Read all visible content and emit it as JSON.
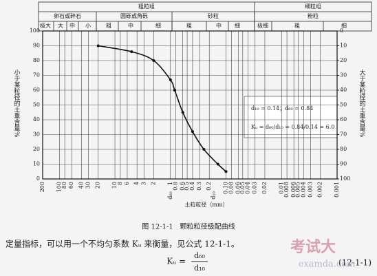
{
  "chart_data": {
    "type": "line",
    "ylabel": "小于某粒径的土重含量%",
    "y2label": "大于某粒径的土重含量%",
    "xlabel": "土粒粒径（mm）",
    "header": {
      "row1": [
        "粗粒组",
        "细粒组"
      ],
      "row2": [
        "卵石或碎石",
        "圆砾或角砾",
        "砂粒",
        "粉粒"
      ],
      "row3": [
        "极大",
        "大",
        "中",
        "小",
        "粗",
        "中",
        "细",
        "粗",
        "中",
        "细",
        "极细",
        "粗",
        "细"
      ]
    },
    "log_x": true,
    "xlim": [
      200,
      0.001
    ],
    "xticks": [
      200,
      100,
      80,
      60,
      40,
      30,
      20,
      10,
      8,
      6,
      4,
      3,
      2,
      1,
      0.8,
      0.6,
      0.5,
      0.4,
      0.3,
      0.2,
      {
        "value": 0.1,
        "label": "0.10"
      },
      0.08,
      0.06,
      0.05,
      0.04,
      0.03,
      0.02,
      0.01,
      0.008,
      0.006,
      0.005,
      0.004,
      0.003,
      0.002,
      0.001
    ],
    "ylim": [
      0,
      100
    ],
    "yticks": [
      0,
      10,
      20,
      30,
      40,
      50,
      60,
      70,
      80,
      90,
      100
    ],
    "y2lim": [
      100,
      0
    ],
    "y2ticks": [
      0,
      10,
      20,
      30,
      40,
      50,
      60,
      70,
      80,
      90,
      100
    ],
    "x": [
      20,
      5,
      2,
      1,
      0.84,
      0.6,
      0.4,
      0.25,
      0.14,
      0.1
    ],
    "values": [
      90,
      86,
      80,
      67,
      60,
      45,
      32,
      20,
      10,
      5
    ],
    "color": "#111",
    "markers": [
      {
        "label": "d₆₀",
        "x": 0.84
      },
      {
        "label": "d₁₀",
        "x": 0.14
      }
    ],
    "annotations": [
      "d₁₀ = 0.14；d₆₀ = 0.84",
      "Kᵤ = d₆₀/d₁₀ = 0.84/0.14 = 6.0"
    ],
    "grid": true
  },
  "caption": "图 12-1-1　颗粒粒径级配曲线",
  "body_text": "定量指标，可以用一个不均匀系数 Kᵤ 来衡量，见公式 12-1-1。",
  "formula": {
    "lhs": "Kᵤ =",
    "numerator": "d₆₀",
    "denominator": "d₁₀",
    "number": "(12-1-1)"
  },
  "watermark": [
    "考试大",
    "examda.com"
  ]
}
